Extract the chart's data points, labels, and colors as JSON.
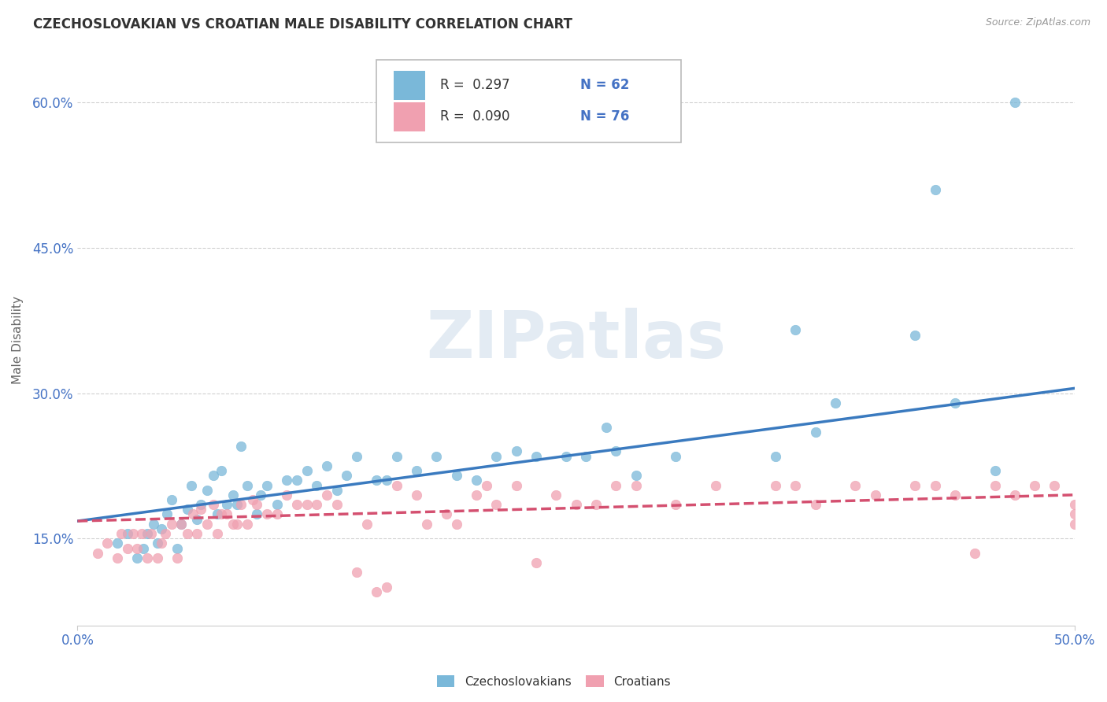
{
  "title": "CZECHOSLOVAKIAN VS CROATIAN MALE DISABILITY CORRELATION CHART",
  "source": "Source: ZipAtlas.com",
  "xlabel": "",
  "ylabel": "Male Disability",
  "xlim": [
    0.0,
    0.5
  ],
  "ylim": [
    0.06,
    0.65
  ],
  "xticks": [
    0.0,
    0.5
  ],
  "xtick_labels": [
    "0.0%",
    "50.0%"
  ],
  "yticks": [
    0.15,
    0.3,
    0.45,
    0.6
  ],
  "ytick_labels": [
    "15.0%",
    "30.0%",
    "45.0%",
    "60.0%"
  ],
  "legend_R1": "R =  0.297",
  "legend_N1": "N = 62",
  "legend_R2": "R =  0.090",
  "legend_N2": "N = 76",
  "blue_color": "#7ab8d9",
  "blue_line_color": "#3a7abf",
  "pink_color": "#f0a0b0",
  "pink_line_color": "#d45070",
  "watermark": "ZIPatlas",
  "blue_scatter_x": [
    0.02,
    0.025,
    0.03,
    0.033,
    0.035,
    0.038,
    0.04,
    0.042,
    0.045,
    0.047,
    0.05,
    0.052,
    0.055,
    0.057,
    0.06,
    0.062,
    0.065,
    0.068,
    0.07,
    0.072,
    0.075,
    0.078,
    0.08,
    0.082,
    0.085,
    0.09,
    0.092,
    0.095,
    0.1,
    0.105,
    0.11,
    0.115,
    0.12,
    0.125,
    0.13,
    0.135,
    0.14,
    0.15,
    0.155,
    0.16,
    0.17,
    0.18,
    0.19,
    0.2,
    0.21,
    0.22,
    0.23,
    0.245,
    0.255,
    0.265,
    0.27,
    0.28,
    0.3,
    0.35,
    0.36,
    0.37,
    0.38,
    0.42,
    0.43,
    0.44,
    0.46,
    0.47
  ],
  "blue_scatter_y": [
    0.145,
    0.155,
    0.13,
    0.14,
    0.155,
    0.165,
    0.145,
    0.16,
    0.175,
    0.19,
    0.14,
    0.165,
    0.18,
    0.205,
    0.17,
    0.185,
    0.2,
    0.215,
    0.175,
    0.22,
    0.185,
    0.195,
    0.185,
    0.245,
    0.205,
    0.175,
    0.195,
    0.205,
    0.185,
    0.21,
    0.21,
    0.22,
    0.205,
    0.225,
    0.2,
    0.215,
    0.235,
    0.21,
    0.21,
    0.235,
    0.22,
    0.235,
    0.215,
    0.21,
    0.235,
    0.24,
    0.235,
    0.235,
    0.235,
    0.265,
    0.24,
    0.215,
    0.235,
    0.235,
    0.365,
    0.26,
    0.29,
    0.36,
    0.51,
    0.29,
    0.22,
    0.6
  ],
  "pink_scatter_x": [
    0.01,
    0.015,
    0.02,
    0.022,
    0.025,
    0.028,
    0.03,
    0.032,
    0.035,
    0.037,
    0.04,
    0.042,
    0.044,
    0.047,
    0.05,
    0.052,
    0.055,
    0.058,
    0.06,
    0.062,
    0.065,
    0.068,
    0.07,
    0.072,
    0.075,
    0.078,
    0.08,
    0.082,
    0.085,
    0.088,
    0.09,
    0.095,
    0.1,
    0.105,
    0.11,
    0.115,
    0.12,
    0.125,
    0.13,
    0.14,
    0.145,
    0.15,
    0.155,
    0.16,
    0.17,
    0.175,
    0.185,
    0.19,
    0.2,
    0.205,
    0.21,
    0.22,
    0.23,
    0.24,
    0.25,
    0.26,
    0.27,
    0.28,
    0.3,
    0.32,
    0.35,
    0.36,
    0.37,
    0.39,
    0.4,
    0.42,
    0.43,
    0.44,
    0.45,
    0.46,
    0.47,
    0.48,
    0.49,
    0.5,
    0.5,
    0.5
  ],
  "pink_scatter_y": [
    0.135,
    0.145,
    0.13,
    0.155,
    0.14,
    0.155,
    0.14,
    0.155,
    0.13,
    0.155,
    0.13,
    0.145,
    0.155,
    0.165,
    0.13,
    0.165,
    0.155,
    0.175,
    0.155,
    0.18,
    0.165,
    0.185,
    0.155,
    0.175,
    0.175,
    0.165,
    0.165,
    0.185,
    0.165,
    0.19,
    0.185,
    0.175,
    0.175,
    0.195,
    0.185,
    0.185,
    0.185,
    0.195,
    0.185,
    0.115,
    0.165,
    0.095,
    0.1,
    0.205,
    0.195,
    0.165,
    0.175,
    0.165,
    0.195,
    0.205,
    0.185,
    0.205,
    0.125,
    0.195,
    0.185,
    0.185,
    0.205,
    0.205,
    0.185,
    0.205,
    0.205,
    0.205,
    0.185,
    0.205,
    0.195,
    0.205,
    0.205,
    0.195,
    0.135,
    0.205,
    0.195,
    0.205,
    0.205,
    0.165,
    0.175,
    0.185
  ],
  "blue_line_start_y": 0.168,
  "blue_line_end_y": 0.305,
  "pink_line_start_y": 0.168,
  "pink_line_end_y": 0.195
}
